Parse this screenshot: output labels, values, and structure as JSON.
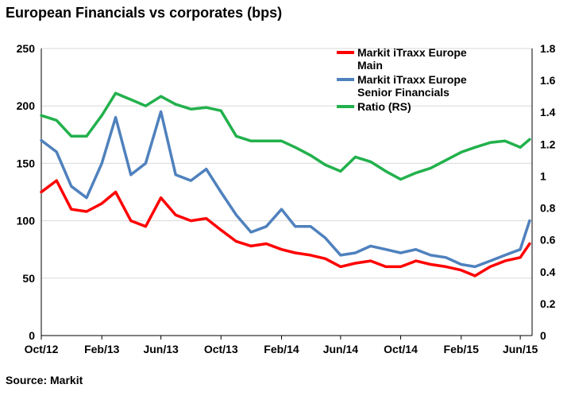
{
  "chart_data": {
    "type": "line",
    "title": "European Financials vs corporates (bps)",
    "source": "Source: Markit",
    "x_tick_labels": [
      "Oct/12",
      "Feb/13",
      "Jun/13",
      "Oct/13",
      "Feb/14",
      "Jun/14",
      "Oct/14",
      "Feb/15",
      "Jun/15"
    ],
    "x": [
      "2012-10-01",
      "2012-11-01",
      "2012-12-01",
      "2013-01-01",
      "2013-02-01",
      "2013-03-01",
      "2013-04-01",
      "2013-05-01",
      "2013-06-01",
      "2013-07-01",
      "2013-08-01",
      "2013-09-01",
      "2013-10-01",
      "2013-11-01",
      "2013-12-01",
      "2014-01-01",
      "2014-02-01",
      "2014-03-01",
      "2014-04-01",
      "2014-05-01",
      "2014-06-01",
      "2014-07-01",
      "2014-08-01",
      "2014-09-01",
      "2014-10-01",
      "2014-11-01",
      "2014-12-01",
      "2015-01-01",
      "2015-02-01",
      "2015-03-01",
      "2015-04-01",
      "2015-05-01",
      "2015-06-01",
      "2015-06-20"
    ],
    "y_left": {
      "ticks": [
        "0",
        "50",
        "100",
        "150",
        "200",
        "250"
      ],
      "ylim": [
        0,
        250
      ]
    },
    "y_right": {
      "ticks": [
        "0",
        "0.2",
        "0.4",
        "0.6",
        "0.8",
        "1",
        "1.2",
        "1.4",
        "1.6",
        "1.8"
      ],
      "ylim": [
        0,
        1.8
      ]
    },
    "grid": true,
    "legend_position": "top-right",
    "series": [
      {
        "name": "Markit iTraxx Europe Main",
        "axis": "left",
        "color": "#ff0000",
        "values": [
          125,
          135,
          110,
          108,
          115,
          125,
          100,
          95,
          120,
          105,
          100,
          102,
          92,
          82,
          78,
          80,
          75,
          72,
          70,
          67,
          60,
          63,
          65,
          60,
          60,
          65,
          62,
          60,
          57,
          52,
          60,
          65,
          68,
          80
        ]
      },
      {
        "name": "Markit iTraxx Europe Senior Financials",
        "axis": "left",
        "color": "#4f81bd",
        "values": [
          170,
          160,
          130,
          120,
          150,
          190,
          140,
          150,
          195,
          140,
          135,
          145,
          125,
          105,
          90,
          95,
          110,
          95,
          95,
          85,
          70,
          72,
          78,
          75,
          72,
          75,
          70,
          68,
          62,
          60,
          65,
          70,
          75,
          100
        ]
      },
      {
        "name": "Ratio (RS)",
        "axis": "right",
        "color": "#22b14c",
        "values": [
          1.38,
          1.35,
          1.25,
          1.25,
          1.38,
          1.52,
          1.48,
          1.44,
          1.5,
          1.45,
          1.42,
          1.43,
          1.41,
          1.25,
          1.22,
          1.22,
          1.22,
          1.18,
          1.13,
          1.07,
          1.03,
          1.12,
          1.09,
          1.03,
          0.98,
          1.02,
          1.05,
          1.1,
          1.15,
          1.18,
          1.21,
          1.22,
          1.18,
          1.23
        ]
      }
    ]
  }
}
